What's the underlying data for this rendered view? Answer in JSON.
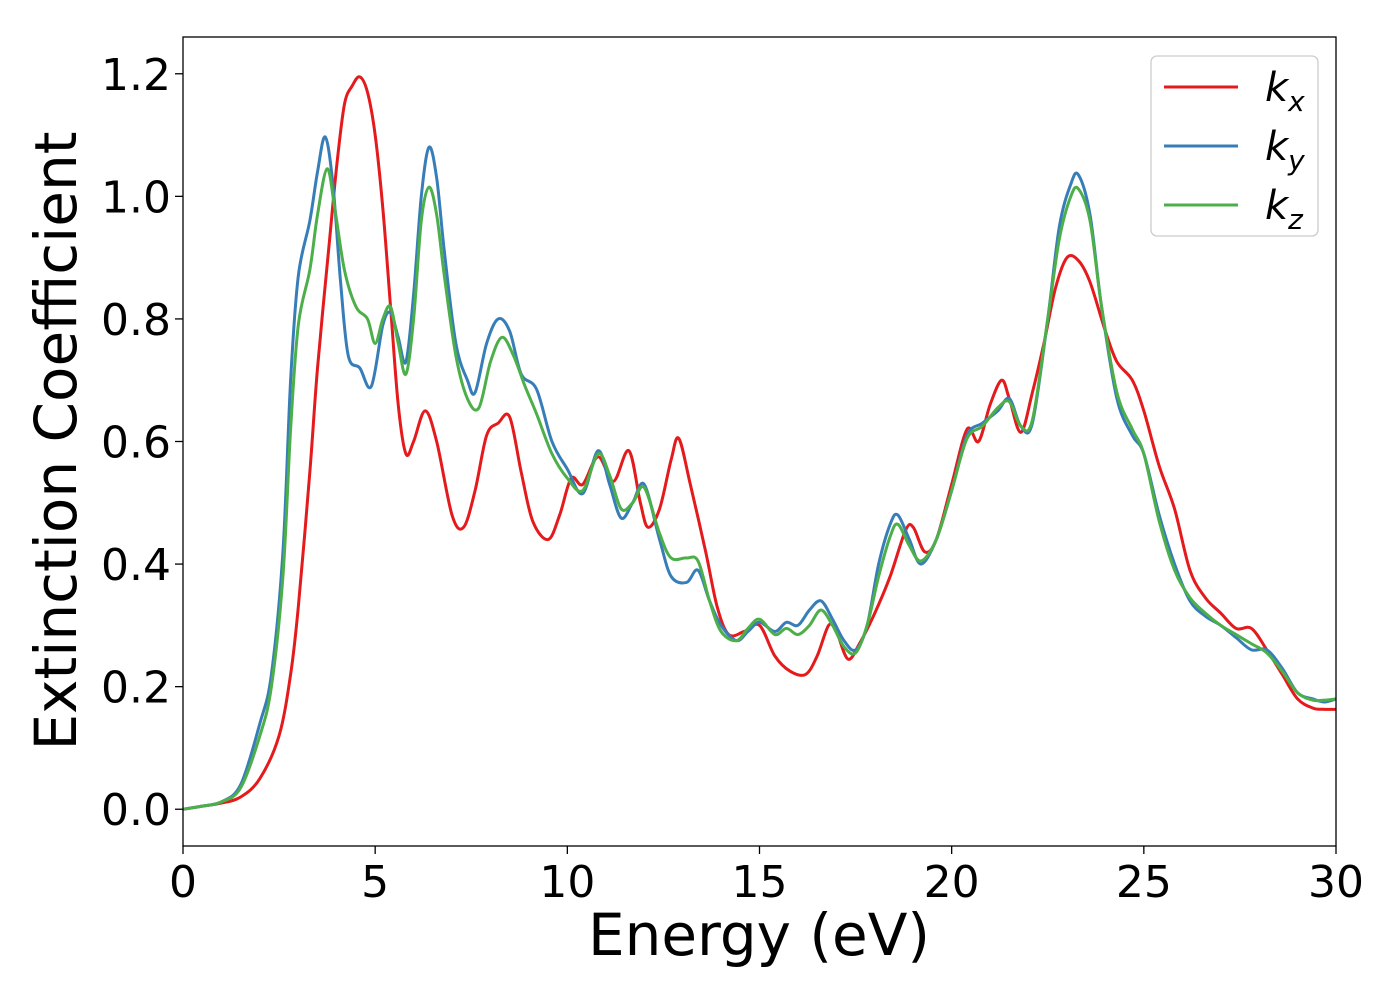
{
  "chart_data": {
    "type": "line",
    "title": "",
    "xlabel": "Energy (eV)",
    "ylabel": "Extinction Coefficient",
    "xlim": [
      0,
      30
    ],
    "ylim": [
      -0.06,
      1.26
    ],
    "xticks": [
      0,
      5,
      10,
      15,
      20,
      25,
      30
    ],
    "xtick_labels": [
      "0",
      "5",
      "10",
      "15",
      "20",
      "25",
      "30"
    ],
    "yticks": [
      0.0,
      0.2,
      0.4,
      0.6,
      0.8,
      1.0,
      1.2
    ],
    "ytick_labels": [
      "0.0",
      "0.2",
      "0.4",
      "0.6",
      "0.8",
      "1.0",
      "1.2"
    ],
    "grid": false,
    "legend_position": "top-right",
    "series": [
      {
        "name": "k_x",
        "label_base": "k",
        "label_sub": "x",
        "color": "#e41a1c",
        "points": [
          [
            0,
            0
          ],
          [
            0.5,
            0.005
          ],
          [
            1.0,
            0.01
          ],
          [
            1.5,
            0.02
          ],
          [
            2.0,
            0.05
          ],
          [
            2.5,
            0.12
          ],
          [
            2.8,
            0.22
          ],
          [
            3.0,
            0.33
          ],
          [
            3.3,
            0.55
          ],
          [
            3.5,
            0.72
          ],
          [
            3.8,
            0.92
          ],
          [
            4.0,
            1.05
          ],
          [
            4.2,
            1.15
          ],
          [
            4.4,
            1.18
          ],
          [
            4.6,
            1.195
          ],
          [
            4.8,
            1.17
          ],
          [
            5.0,
            1.1
          ],
          [
            5.2,
            0.98
          ],
          [
            5.4,
            0.82
          ],
          [
            5.6,
            0.66
          ],
          [
            5.8,
            0.58
          ],
          [
            6.0,
            0.6
          ],
          [
            6.3,
            0.65
          ],
          [
            6.6,
            0.6
          ],
          [
            7.0,
            0.48
          ],
          [
            7.3,
            0.46
          ],
          [
            7.6,
            0.52
          ],
          [
            7.9,
            0.61
          ],
          [
            8.2,
            0.63
          ],
          [
            8.5,
            0.64
          ],
          [
            8.8,
            0.55
          ],
          [
            9.1,
            0.47
          ],
          [
            9.5,
            0.44
          ],
          [
            9.8,
            0.48
          ],
          [
            10.1,
            0.54
          ],
          [
            10.4,
            0.53
          ],
          [
            10.8,
            0.575
          ],
          [
            11.2,
            0.535
          ],
          [
            11.6,
            0.585
          ],
          [
            11.9,
            0.5
          ],
          [
            12.1,
            0.46
          ],
          [
            12.4,
            0.49
          ],
          [
            12.7,
            0.57
          ],
          [
            12.9,
            0.605
          ],
          [
            13.2,
            0.53
          ],
          [
            13.6,
            0.42
          ],
          [
            13.9,
            0.33
          ],
          [
            14.2,
            0.285
          ],
          [
            14.6,
            0.29
          ],
          [
            15.0,
            0.3
          ],
          [
            15.4,
            0.25
          ],
          [
            15.8,
            0.225
          ],
          [
            16.2,
            0.22
          ],
          [
            16.5,
            0.25
          ],
          [
            16.8,
            0.3
          ],
          [
            17.0,
            0.29
          ],
          [
            17.3,
            0.245
          ],
          [
            17.6,
            0.27
          ],
          [
            18.0,
            0.32
          ],
          [
            18.4,
            0.38
          ],
          [
            18.8,
            0.455
          ],
          [
            19.0,
            0.46
          ],
          [
            19.3,
            0.42
          ],
          [
            19.6,
            0.44
          ],
          [
            20.0,
            0.53
          ],
          [
            20.4,
            0.62
          ],
          [
            20.7,
            0.6
          ],
          [
            21.0,
            0.66
          ],
          [
            21.3,
            0.7
          ],
          [
            21.5,
            0.67
          ],
          [
            21.8,
            0.615
          ],
          [
            22.1,
            0.68
          ],
          [
            22.4,
            0.76
          ],
          [
            22.7,
            0.85
          ],
          [
            23.0,
            0.9
          ],
          [
            23.3,
            0.895
          ],
          [
            23.6,
            0.86
          ],
          [
            24.0,
            0.78
          ],
          [
            24.3,
            0.73
          ],
          [
            24.7,
            0.7
          ],
          [
            25.0,
            0.65
          ],
          [
            25.4,
            0.56
          ],
          [
            25.8,
            0.49
          ],
          [
            26.2,
            0.39
          ],
          [
            26.6,
            0.345
          ],
          [
            27.0,
            0.32
          ],
          [
            27.4,
            0.295
          ],
          [
            27.8,
            0.295
          ],
          [
            28.2,
            0.26
          ],
          [
            28.6,
            0.22
          ],
          [
            29.0,
            0.18
          ],
          [
            29.4,
            0.165
          ],
          [
            29.7,
            0.163
          ],
          [
            30.0,
            0.163
          ]
        ]
      },
      {
        "name": "k_y",
        "label_base": "k",
        "label_sub": "y",
        "color": "#377eb8",
        "points": [
          [
            0,
            0
          ],
          [
            0.5,
            0.005
          ],
          [
            1.0,
            0.012
          ],
          [
            1.5,
            0.04
          ],
          [
            2.0,
            0.14
          ],
          [
            2.3,
            0.22
          ],
          [
            2.6,
            0.42
          ],
          [
            2.8,
            0.7
          ],
          [
            3.0,
            0.87
          ],
          [
            3.3,
            0.96
          ],
          [
            3.5,
            1.04
          ],
          [
            3.7,
            1.097
          ],
          [
            3.9,
            1.02
          ],
          [
            4.1,
            0.86
          ],
          [
            4.3,
            0.74
          ],
          [
            4.6,
            0.72
          ],
          [
            4.9,
            0.69
          ],
          [
            5.2,
            0.79
          ],
          [
            5.4,
            0.81
          ],
          [
            5.6,
            0.77
          ],
          [
            5.8,
            0.73
          ],
          [
            6.0,
            0.84
          ],
          [
            6.2,
            1.0
          ],
          [
            6.4,
            1.08
          ],
          [
            6.6,
            1.03
          ],
          [
            6.8,
            0.91
          ],
          [
            7.1,
            0.76
          ],
          [
            7.4,
            0.7
          ],
          [
            7.6,
            0.68
          ],
          [
            7.9,
            0.76
          ],
          [
            8.2,
            0.8
          ],
          [
            8.5,
            0.78
          ],
          [
            8.8,
            0.71
          ],
          [
            9.2,
            0.685
          ],
          [
            9.6,
            0.6
          ],
          [
            10.0,
            0.555
          ],
          [
            10.4,
            0.515
          ],
          [
            10.8,
            0.585
          ],
          [
            11.1,
            0.53
          ],
          [
            11.4,
            0.475
          ],
          [
            11.7,
            0.5
          ],
          [
            12.0,
            0.53
          ],
          [
            12.4,
            0.44
          ],
          [
            12.7,
            0.38
          ],
          [
            13.1,
            0.37
          ],
          [
            13.4,
            0.39
          ],
          [
            13.7,
            0.34
          ],
          [
            14.0,
            0.3
          ],
          [
            14.4,
            0.275
          ],
          [
            14.7,
            0.29
          ],
          [
            15.0,
            0.305
          ],
          [
            15.4,
            0.29
          ],
          [
            15.7,
            0.305
          ],
          [
            16.0,
            0.3
          ],
          [
            16.3,
            0.325
          ],
          [
            16.6,
            0.34
          ],
          [
            16.9,
            0.31
          ],
          [
            17.2,
            0.275
          ],
          [
            17.5,
            0.26
          ],
          [
            17.8,
            0.3
          ],
          [
            18.1,
            0.4
          ],
          [
            18.4,
            0.465
          ],
          [
            18.6,
            0.48
          ],
          [
            18.9,
            0.44
          ],
          [
            19.2,
            0.4
          ],
          [
            19.6,
            0.44
          ],
          [
            20.0,
            0.52
          ],
          [
            20.4,
            0.61
          ],
          [
            20.8,
            0.63
          ],
          [
            21.2,
            0.65
          ],
          [
            21.5,
            0.67
          ],
          [
            21.8,
            0.625
          ],
          [
            22.1,
            0.63
          ],
          [
            22.5,
            0.8
          ],
          [
            22.8,
            0.95
          ],
          [
            23.1,
            1.02
          ],
          [
            23.3,
            1.035
          ],
          [
            23.6,
            0.97
          ],
          [
            23.9,
            0.82
          ],
          [
            24.3,
            0.67
          ],
          [
            24.7,
            0.61
          ],
          [
            25.0,
            0.58
          ],
          [
            25.4,
            0.48
          ],
          [
            25.8,
            0.4
          ],
          [
            26.2,
            0.34
          ],
          [
            26.6,
            0.315
          ],
          [
            27.0,
            0.3
          ],
          [
            27.4,
            0.28
          ],
          [
            27.8,
            0.26
          ],
          [
            28.2,
            0.26
          ],
          [
            28.6,
            0.23
          ],
          [
            29.0,
            0.19
          ],
          [
            29.4,
            0.18
          ],
          [
            29.7,
            0.175
          ],
          [
            30.0,
            0.18
          ]
        ]
      },
      {
        "name": "k_z",
        "label_base": "k",
        "label_sub": "z",
        "color": "#4daf4a",
        "points": [
          [
            0,
            0
          ],
          [
            0.5,
            0.005
          ],
          [
            1.0,
            0.012
          ],
          [
            1.5,
            0.035
          ],
          [
            2.0,
            0.12
          ],
          [
            2.3,
            0.2
          ],
          [
            2.6,
            0.38
          ],
          [
            2.8,
            0.62
          ],
          [
            3.0,
            0.79
          ],
          [
            3.3,
            0.88
          ],
          [
            3.5,
            0.97
          ],
          [
            3.75,
            1.045
          ],
          [
            3.95,
            0.98
          ],
          [
            4.2,
            0.88
          ],
          [
            4.5,
            0.82
          ],
          [
            4.8,
            0.8
          ],
          [
            5.0,
            0.76
          ],
          [
            5.2,
            0.8
          ],
          [
            5.4,
            0.82
          ],
          [
            5.6,
            0.76
          ],
          [
            5.8,
            0.71
          ],
          [
            6.0,
            0.8
          ],
          [
            6.2,
            0.96
          ],
          [
            6.4,
            1.015
          ],
          [
            6.6,
            0.97
          ],
          [
            6.8,
            0.87
          ],
          [
            7.1,
            0.74
          ],
          [
            7.4,
            0.67
          ],
          [
            7.7,
            0.655
          ],
          [
            8.0,
            0.73
          ],
          [
            8.3,
            0.77
          ],
          [
            8.6,
            0.74
          ],
          [
            8.9,
            0.69
          ],
          [
            9.2,
            0.645
          ],
          [
            9.6,
            0.58
          ],
          [
            10.0,
            0.54
          ],
          [
            10.4,
            0.52
          ],
          [
            10.8,
            0.58
          ],
          [
            11.1,
            0.545
          ],
          [
            11.4,
            0.49
          ],
          [
            11.7,
            0.5
          ],
          [
            12.0,
            0.525
          ],
          [
            12.4,
            0.45
          ],
          [
            12.7,
            0.41
          ],
          [
            13.1,
            0.41
          ],
          [
            13.4,
            0.405
          ],
          [
            13.7,
            0.34
          ],
          [
            14.0,
            0.29
          ],
          [
            14.4,
            0.275
          ],
          [
            14.7,
            0.295
          ],
          [
            15.0,
            0.31
          ],
          [
            15.4,
            0.285
          ],
          [
            15.7,
            0.295
          ],
          [
            16.0,
            0.285
          ],
          [
            16.3,
            0.3
          ],
          [
            16.6,
            0.325
          ],
          [
            16.9,
            0.3
          ],
          [
            17.2,
            0.265
          ],
          [
            17.5,
            0.255
          ],
          [
            17.8,
            0.3
          ],
          [
            18.1,
            0.38
          ],
          [
            18.4,
            0.445
          ],
          [
            18.6,
            0.465
          ],
          [
            18.9,
            0.43
          ],
          [
            19.2,
            0.405
          ],
          [
            19.6,
            0.44
          ],
          [
            20.0,
            0.52
          ],
          [
            20.4,
            0.605
          ],
          [
            20.8,
            0.625
          ],
          [
            21.2,
            0.655
          ],
          [
            21.5,
            0.665
          ],
          [
            21.8,
            0.625
          ],
          [
            22.1,
            0.635
          ],
          [
            22.5,
            0.8
          ],
          [
            22.8,
            0.93
          ],
          [
            23.1,
            1.0
          ],
          [
            23.3,
            1.012
          ],
          [
            23.6,
            0.96
          ],
          [
            23.9,
            0.82
          ],
          [
            24.3,
            0.68
          ],
          [
            24.7,
            0.62
          ],
          [
            25.0,
            0.58
          ],
          [
            25.4,
            0.47
          ],
          [
            25.8,
            0.39
          ],
          [
            26.2,
            0.345
          ],
          [
            26.6,
            0.32
          ],
          [
            27.0,
            0.3
          ],
          [
            27.4,
            0.285
          ],
          [
            27.8,
            0.27
          ],
          [
            28.2,
            0.255
          ],
          [
            28.6,
            0.225
          ],
          [
            29.0,
            0.19
          ],
          [
            29.4,
            0.178
          ],
          [
            29.7,
            0.178
          ],
          [
            30.0,
            0.18
          ]
        ]
      }
    ]
  }
}
